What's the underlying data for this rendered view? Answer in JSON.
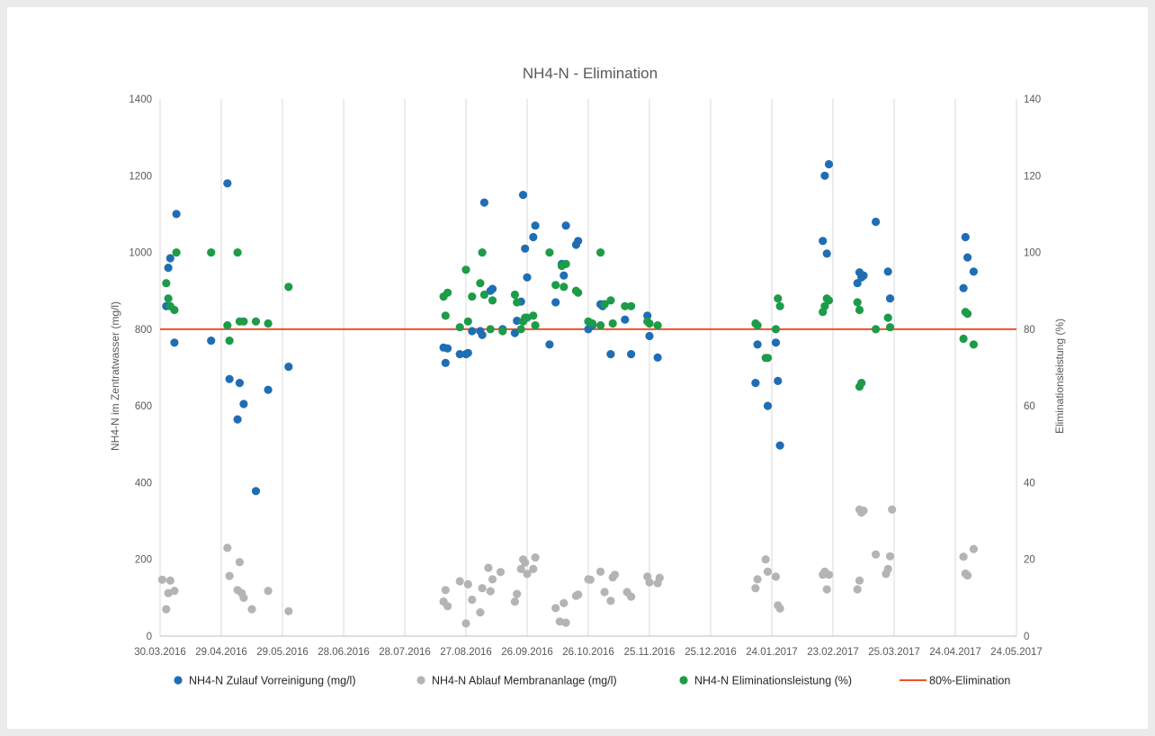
{
  "chart_data": {
    "type": "scatter",
    "title": "NH4-N - Elimination",
    "ylabel": "NH4-N im Zentratwasser (mg/l)",
    "y2label": "Eliminationsleistung (%)",
    "xlabel": "",
    "x_range": [
      "2016-03-30",
      "2017-05-24"
    ],
    "ylim": [
      0,
      1400
    ],
    "y2lim": [
      0,
      140
    ],
    "y_ticks": [
      "0",
      "200",
      "400",
      "600",
      "800",
      "1000",
      "1200",
      "1400"
    ],
    "y2_ticks": [
      "0",
      "20",
      "40",
      "60",
      "80",
      "100",
      "120",
      "140"
    ],
    "x_ticks": [
      "30.03.2016",
      "29.04.2016",
      "29.05.2016",
      "28.06.2016",
      "28.07.2016",
      "27.08.2016",
      "26.09.2016",
      "26.10.2016",
      "25.11.2016",
      "25.12.2016",
      "24.01.2017",
      "23.02.2017",
      "25.03.2017",
      "24.04.2017",
      "24.05.2017"
    ],
    "grid": "vertical",
    "legend_position": "bottom",
    "colors": {
      "zulauf": "#1f6eb4",
      "ablauf": "#b4b4b4",
      "elimination": "#1e9b48",
      "line80": "#f0502a",
      "grid": "#d9d9d9",
      "axis": "#bfbfbf"
    },
    "series": [
      {
        "name": "NH4-N Zulauf Vorreinigung (mg/l)",
        "axis": "left",
        "color": "#1f6eb4",
        "points": [
          [
            "2016-04-02",
            860
          ],
          [
            "2016-04-03",
            960
          ],
          [
            "2016-04-04",
            985
          ],
          [
            "2016-04-06",
            765
          ],
          [
            "2016-04-07",
            1100
          ],
          [
            "2016-04-24",
            770
          ],
          [
            "2016-05-02",
            1180
          ],
          [
            "2016-05-03",
            670
          ],
          [
            "2016-05-07",
            565
          ],
          [
            "2016-05-08",
            660
          ],
          [
            "2016-05-10",
            605
          ],
          [
            "2016-05-16",
            378
          ],
          [
            "2016-05-22",
            642
          ],
          [
            "2016-06-01",
            702
          ],
          [
            "2016-08-16",
            752
          ],
          [
            "2016-08-17",
            712
          ],
          [
            "2016-08-18",
            750
          ],
          [
            "2016-08-24",
            735
          ],
          [
            "2016-08-27",
            735
          ],
          [
            "2016-08-28",
            738
          ],
          [
            "2016-08-30",
            795
          ],
          [
            "2016-09-03",
            795
          ],
          [
            "2016-09-04",
            785
          ],
          [
            "2016-09-05",
            1130
          ],
          [
            "2016-09-08",
            900
          ],
          [
            "2016-09-09",
            905
          ],
          [
            "2016-09-14",
            800
          ],
          [
            "2016-09-20",
            790
          ],
          [
            "2016-09-21",
            822
          ],
          [
            "2016-09-23",
            872
          ],
          [
            "2016-09-24",
            1150
          ],
          [
            "2016-09-25",
            1010
          ],
          [
            "2016-09-26",
            935
          ],
          [
            "2016-09-29",
            1040
          ],
          [
            "2016-09-30",
            1070
          ],
          [
            "2016-10-07",
            760
          ],
          [
            "2016-10-10",
            870
          ],
          [
            "2016-10-13",
            970
          ],
          [
            "2016-10-14",
            940
          ],
          [
            "2016-10-15",
            1070
          ],
          [
            "2016-10-20",
            1020
          ],
          [
            "2016-10-21",
            1030
          ],
          [
            "2016-10-26",
            800
          ],
          [
            "2016-10-28",
            810
          ],
          [
            "2016-11-01",
            865
          ],
          [
            "2016-11-02",
            860
          ],
          [
            "2016-11-03",
            865
          ],
          [
            "2016-11-06",
            735
          ],
          [
            "2016-11-13",
            825
          ],
          [
            "2016-11-16",
            735
          ],
          [
            "2016-11-24",
            835
          ],
          [
            "2016-11-25",
            782
          ],
          [
            "2016-11-29",
            726
          ],
          [
            "2017-01-16",
            660
          ],
          [
            "2017-01-17",
            760
          ],
          [
            "2017-01-22",
            600
          ],
          [
            "2017-01-26",
            765
          ],
          [
            "2017-01-27",
            665
          ],
          [
            "2017-01-28",
            497
          ],
          [
            "2017-02-18",
            1030
          ],
          [
            "2017-02-19",
            1200
          ],
          [
            "2017-02-20",
            997
          ],
          [
            "2017-02-21",
            1230
          ],
          [
            "2017-03-07",
            920
          ],
          [
            "2017-03-08",
            948
          ],
          [
            "2017-03-09",
            935
          ],
          [
            "2017-03-10",
            940
          ],
          [
            "2017-03-16",
            1080
          ],
          [
            "2017-03-22",
            950
          ],
          [
            "2017-03-23",
            880
          ],
          [
            "2017-04-28",
            907
          ],
          [
            "2017-04-29",
            1040
          ],
          [
            "2017-04-30",
            987
          ],
          [
            "2017-05-03",
            950
          ]
        ]
      },
      {
        "name": "NH4-N Ablauf Membrananlage (mg/l)",
        "axis": "left",
        "color": "#b4b4b4",
        "points": [
          [
            "2016-03-31",
            147
          ],
          [
            "2016-04-02",
            70
          ],
          [
            "2016-04-03",
            112
          ],
          [
            "2016-04-04",
            145
          ],
          [
            "2016-04-06",
            118
          ],
          [
            "2016-05-02",
            230
          ],
          [
            "2016-05-03",
            157
          ],
          [
            "2016-05-07",
            120
          ],
          [
            "2016-05-08",
            193
          ],
          [
            "2016-05-09",
            112
          ],
          [
            "2016-05-10",
            100
          ],
          [
            "2016-05-14",
            70
          ],
          [
            "2016-05-22",
            118
          ],
          [
            "2016-06-01",
            65
          ],
          [
            "2016-08-16",
            90
          ],
          [
            "2016-08-17",
            120
          ],
          [
            "2016-08-18",
            78
          ],
          [
            "2016-08-24",
            143
          ],
          [
            "2016-08-27",
            33
          ],
          [
            "2016-08-28",
            135
          ],
          [
            "2016-08-30",
            95
          ],
          [
            "2016-09-03",
            62
          ],
          [
            "2016-09-04",
            125
          ],
          [
            "2016-09-07",
            178
          ],
          [
            "2016-09-08",
            117
          ],
          [
            "2016-09-09",
            148
          ],
          [
            "2016-09-13",
            167
          ],
          [
            "2016-09-20",
            90
          ],
          [
            "2016-09-21",
            110
          ],
          [
            "2016-09-23",
            175
          ],
          [
            "2016-09-24",
            200
          ],
          [
            "2016-09-25",
            192
          ],
          [
            "2016-09-26",
            162
          ],
          [
            "2016-09-29",
            175
          ],
          [
            "2016-09-30",
            205
          ],
          [
            "2016-10-10",
            73
          ],
          [
            "2016-10-12",
            38
          ],
          [
            "2016-10-14",
            86
          ],
          [
            "2016-10-15",
            35
          ],
          [
            "2016-10-20",
            105
          ],
          [
            "2016-10-21",
            108
          ],
          [
            "2016-10-26",
            148
          ],
          [
            "2016-10-27",
            147
          ],
          [
            "2016-11-01",
            168
          ],
          [
            "2016-11-03",
            115
          ],
          [
            "2016-11-06",
            92
          ],
          [
            "2016-11-07",
            153
          ],
          [
            "2016-11-08",
            160
          ],
          [
            "2016-11-14",
            115
          ],
          [
            "2016-11-16",
            103
          ],
          [
            "2016-11-24",
            155
          ],
          [
            "2016-11-25",
            140
          ],
          [
            "2016-11-29",
            138
          ],
          [
            "2016-11-30",
            152
          ],
          [
            "2017-01-16",
            125
          ],
          [
            "2017-01-17",
            148
          ],
          [
            "2017-01-21",
            200
          ],
          [
            "2017-01-22",
            168
          ],
          [
            "2017-01-26",
            155
          ],
          [
            "2017-01-27",
            80
          ],
          [
            "2017-01-28",
            72
          ],
          [
            "2017-02-18",
            160
          ],
          [
            "2017-02-19",
            168
          ],
          [
            "2017-02-20",
            122
          ],
          [
            "2017-02-21",
            160
          ],
          [
            "2017-03-07",
            122
          ],
          [
            "2017-03-08",
            145
          ],
          [
            "2017-03-08",
            330
          ],
          [
            "2017-03-09",
            322
          ],
          [
            "2017-03-10",
            327
          ],
          [
            "2017-03-16",
            213
          ],
          [
            "2017-03-21",
            162
          ],
          [
            "2017-03-22",
            175
          ],
          [
            "2017-03-23",
            208
          ],
          [
            "2017-03-24",
            330
          ],
          [
            "2017-04-28",
            207
          ],
          [
            "2017-04-29",
            163
          ],
          [
            "2017-04-30",
            158
          ],
          [
            "2017-05-03",
            227
          ]
        ]
      },
      {
        "name": "NH4-N Eliminationsleistung (%)",
        "axis": "right",
        "color": "#1e9b48",
        "points": [
          [
            "2016-04-02",
            92
          ],
          [
            "2016-04-03",
            88
          ],
          [
            "2016-04-04",
            86
          ],
          [
            "2016-04-06",
            85
          ],
          [
            "2016-04-07",
            100
          ],
          [
            "2016-04-24",
            100
          ],
          [
            "2016-05-02",
            81
          ],
          [
            "2016-05-03",
            77
          ],
          [
            "2016-05-07",
            100
          ],
          [
            "2016-05-08",
            82
          ],
          [
            "2016-05-10",
            82
          ],
          [
            "2016-05-16",
            82
          ],
          [
            "2016-05-22",
            81.5
          ],
          [
            "2016-06-01",
            91
          ],
          [
            "2016-08-16",
            88.5
          ],
          [
            "2016-08-17",
            83.5
          ],
          [
            "2016-08-18",
            89.5
          ],
          [
            "2016-08-24",
            80.5
          ],
          [
            "2016-08-27",
            95.5
          ],
          [
            "2016-08-28",
            82
          ],
          [
            "2016-08-30",
            88.5
          ],
          [
            "2016-09-03",
            92
          ],
          [
            "2016-09-04",
            100
          ],
          [
            "2016-09-05",
            89
          ],
          [
            "2016-09-08",
            80
          ],
          [
            "2016-09-09",
            87.5
          ],
          [
            "2016-09-14",
            79.5
          ],
          [
            "2016-09-20",
            89
          ],
          [
            "2016-09-21",
            87
          ],
          [
            "2016-09-23",
            80
          ],
          [
            "2016-09-24",
            82
          ],
          [
            "2016-09-25",
            83
          ],
          [
            "2016-09-26",
            83
          ],
          [
            "2016-09-29",
            83.5
          ],
          [
            "2016-09-30",
            81
          ],
          [
            "2016-10-07",
            100
          ],
          [
            "2016-10-10",
            91.5
          ],
          [
            "2016-10-13",
            96.5
          ],
          [
            "2016-10-14",
            91
          ],
          [
            "2016-10-15",
            97
          ],
          [
            "2016-10-20",
            90
          ],
          [
            "2016-10-21",
            89.5
          ],
          [
            "2016-10-26",
            82
          ],
          [
            "2016-10-28",
            81.5
          ],
          [
            "2016-11-01",
            81
          ],
          [
            "2016-11-01",
            100
          ],
          [
            "2016-11-03",
            86.5
          ],
          [
            "2016-11-06",
            87.5
          ],
          [
            "2016-11-07",
            81.5
          ],
          [
            "2016-11-13",
            86
          ],
          [
            "2016-11-16",
            86
          ],
          [
            "2016-11-24",
            82
          ],
          [
            "2016-11-25",
            81.5
          ],
          [
            "2016-11-29",
            81
          ],
          [
            "2017-01-16",
            81.5
          ],
          [
            "2017-01-17",
            81
          ],
          [
            "2017-01-21",
            72.5
          ],
          [
            "2017-01-22",
            72.5
          ],
          [
            "2017-01-26",
            80
          ],
          [
            "2017-01-27",
            88
          ],
          [
            "2017-01-28",
            86
          ],
          [
            "2017-02-18",
            84.5
          ],
          [
            "2017-02-19",
            86
          ],
          [
            "2017-02-20",
            88
          ],
          [
            "2017-02-21",
            87.5
          ],
          [
            "2017-03-07",
            87
          ],
          [
            "2017-03-08",
            85
          ],
          [
            "2017-03-08",
            65
          ],
          [
            "2017-03-09",
            66
          ],
          [
            "2017-03-16",
            80
          ],
          [
            "2017-03-22",
            83
          ],
          [
            "2017-03-23",
            80.5
          ],
          [
            "2017-04-28",
            77.5
          ],
          [
            "2017-04-29",
            84.5
          ],
          [
            "2017-04-30",
            84
          ],
          [
            "2017-05-03",
            76
          ]
        ]
      },
      {
        "name": "80%-Elimination",
        "axis": "right",
        "type": "line",
        "color": "#f0502a",
        "points": [
          [
            "2016-03-30",
            80
          ],
          [
            "2017-05-24",
            80
          ]
        ]
      }
    ]
  }
}
